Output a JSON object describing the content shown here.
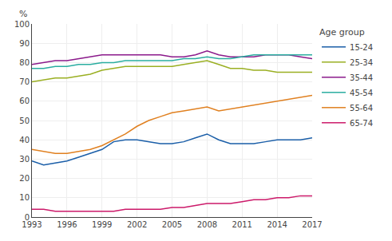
{
  "chart_data": {
    "type": "line",
    "x": [
      1993,
      1994,
      1995,
      1996,
      1997,
      1998,
      1999,
      2000,
      2001,
      2002,
      2003,
      2004,
      2005,
      2006,
      2007,
      2008,
      2009,
      2010,
      2011,
      2012,
      2013,
      2014,
      2015,
      2016,
      2017
    ],
    "series": [
      {
        "name": "15-24",
        "color": "#1a5ea8",
        "values": [
          29,
          27,
          28,
          29,
          31,
          33,
          35,
          39,
          40,
          40,
          39,
          38,
          38,
          39,
          41,
          43,
          40,
          38,
          38,
          38,
          39,
          40,
          40,
          40,
          41
        ]
      },
      {
        "name": "25-34",
        "color": "#9aaf22",
        "values": [
          70,
          71,
          72,
          72,
          73,
          74,
          76,
          77,
          78,
          78,
          78,
          78,
          78,
          79,
          80,
          81,
          79,
          77,
          77,
          76,
          76,
          75,
          75,
          75,
          75
        ]
      },
      {
        "name": "35-44",
        "color": "#8b1a8b",
        "values": [
          79,
          80,
          81,
          81,
          82,
          83,
          84,
          84,
          84,
          84,
          84,
          84,
          83,
          83,
          84,
          86,
          84,
          83,
          83,
          83,
          84,
          84,
          84,
          83,
          82
        ]
      },
      {
        "name": "45-54",
        "color": "#2aada0",
        "values": [
          77,
          77,
          78,
          78,
          79,
          79,
          80,
          80,
          81,
          81,
          81,
          81,
          81,
          82,
          82,
          83,
          82,
          82,
          83,
          84,
          84,
          84,
          84,
          84,
          84
        ]
      },
      {
        "name": "55-64",
        "color": "#e08020",
        "values": [
          35,
          34,
          33,
          33,
          34,
          35,
          37,
          40,
          43,
          47,
          50,
          52,
          54,
          55,
          56,
          57,
          55,
          56,
          57,
          58,
          59,
          60,
          61,
          62,
          63
        ]
      },
      {
        "name": "65-74",
        "color": "#cc1a6a",
        "values": [
          4,
          4,
          3,
          3,
          3,
          3,
          3,
          3,
          4,
          4,
          4,
          4,
          5,
          5,
          6,
          7,
          7,
          7,
          8,
          9,
          9,
          10,
          10,
          11,
          11
        ]
      }
    ],
    "ylabel": "%",
    "legend_title": "Age group",
    "xlim": [
      1993,
      2017
    ],
    "xticks": [
      1993,
      1996,
      1999,
      2002,
      2005,
      2008,
      2011,
      2014,
      2017
    ],
    "ylim": [
      0,
      100
    ],
    "yticks": [
      0,
      10,
      20,
      30,
      40,
      50,
      60,
      70,
      80,
      90,
      100
    ],
    "grid": true,
    "legend": "right"
  }
}
